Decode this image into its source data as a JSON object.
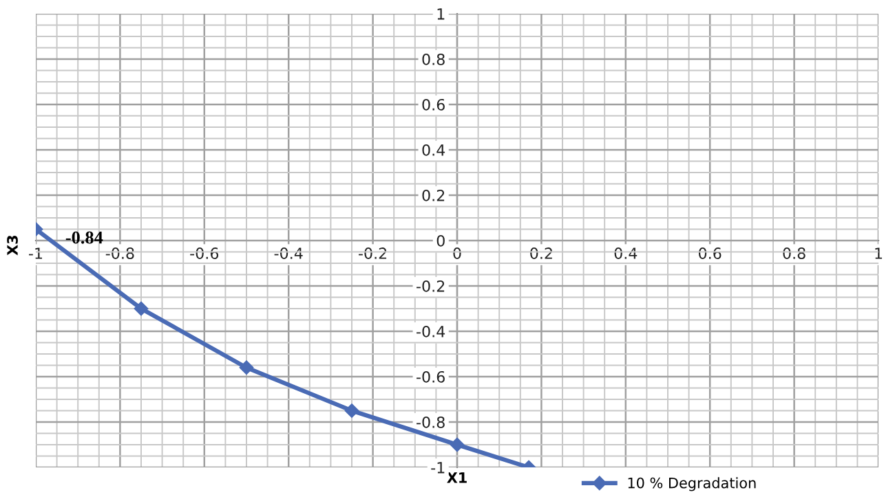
{
  "chart_data": {
    "type": "line",
    "xlabel": "X1",
    "ylabel": "X3",
    "xlim": [
      -1,
      1
    ],
    "ylim": [
      -1,
      1
    ],
    "xticks": [
      -1,
      -0.8,
      -0.6,
      -0.4,
      -0.2,
      0,
      0.2,
      0.4,
      0.6,
      0.8,
      1
    ],
    "yticks": [
      -1,
      -0.8,
      -0.6,
      -0.4,
      -0.2,
      0,
      0.2,
      0.4,
      0.6,
      0.8,
      1
    ],
    "grid": true,
    "legend": "bottom right",
    "marker": "diamond",
    "line_style": "solid",
    "annotations": [
      "-0.84"
    ],
    "series": [
      {
        "name": "10 % Degradation",
        "color": "#4a6bb5",
        "x": [
          -1,
          -0.75,
          -0.5,
          -0.25,
          0,
          0.17
        ],
        "values": [
          0.05,
          -0.3,
          -0.56,
          -0.75,
          -0.9,
          -1.0
        ]
      }
    ]
  }
}
